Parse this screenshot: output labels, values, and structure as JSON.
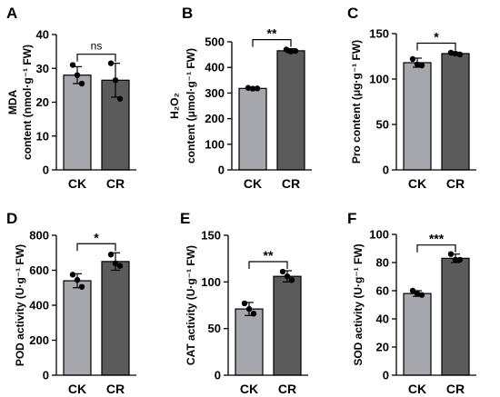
{
  "colors": {
    "CK": "#a6a6ad",
    "CR": "#5b5b5b"
  },
  "chart_data": [
    {
      "type": "bar",
      "panel": "A",
      "ylabel_lines": [
        "MDA",
        "content (nmol·g⁻¹ FW)"
      ],
      "categories": [
        "CK",
        "CR"
      ],
      "values": [
        28,
        26.5
      ],
      "errors": [
        2.5,
        5
      ],
      "points": [
        [
          31,
          28,
          25.5
        ],
        [
          31.5,
          26.5,
          21
        ]
      ],
      "ylim": [
        0,
        40
      ],
      "yticks": [
        0,
        10,
        20,
        30,
        40
      ],
      "significance": "ns"
    },
    {
      "type": "bar",
      "panel": "B",
      "ylabel_lines": [
        "H₂O₂",
        "content (μmol·g⁻¹ FW)"
      ],
      "categories": [
        "CK",
        "CR"
      ],
      "values": [
        318,
        465
      ],
      "errors": [
        4,
        8
      ],
      "points": [
        [
          320,
          317,
          318
        ],
        [
          470,
          462,
          464
        ]
      ],
      "ylim": [
        0,
        500
      ],
      "yticks": [
        0,
        100,
        200,
        300,
        400,
        500
      ],
      "significance": "**"
    },
    {
      "type": "bar",
      "panel": "C",
      "ylabel_lines": [
        "Pro content (μg·g⁻¹ FW)"
      ],
      "categories": [
        "CK",
        "CR"
      ],
      "values": [
        118,
        128
      ],
      "errors": [
        5,
        1.5
      ],
      "points": [
        [
          122,
          116,
          115
        ],
        [
          129,
          128,
          127
        ]
      ],
      "ylim": [
        0,
        150
      ],
      "yticks": [
        0,
        50,
        100,
        150
      ],
      "significance": "*"
    },
    {
      "type": "bar",
      "panel": "D",
      "ylabel_lines": [
        "POD activity (U·g⁻¹ FW)"
      ],
      "categories": [
        "CK",
        "CR"
      ],
      "values": [
        540,
        650
      ],
      "errors": [
        40,
        50
      ],
      "points": [
        [
          575,
          545,
          505
        ],
        [
          690,
          640,
          625
        ]
      ],
      "ylim": [
        0,
        800
      ],
      "yticks": [
        0,
        200,
        400,
        600,
        800
      ],
      "significance": "*"
    },
    {
      "type": "bar",
      "panel": "E",
      "ylabel_lines": [
        "CAT activity (U·g⁻¹ FW)"
      ],
      "categories": [
        "CK",
        "CR"
      ],
      "values": [
        71,
        106
      ],
      "errors": [
        7,
        6
      ],
      "points": [
        [
          77,
          71,
          66
        ],
        [
          111,
          106,
          102
        ]
      ],
      "ylim": [
        0,
        150
      ],
      "yticks": [
        0,
        50,
        100,
        150
      ],
      "significance": "**"
    },
    {
      "type": "bar",
      "panel": "F",
      "ylabel_lines": [
        "SOD activity (U·g⁻¹ FW)"
      ],
      "categories": [
        "CK",
        "CR"
      ],
      "values": [
        58,
        83
      ],
      "errors": [
        2,
        3
      ],
      "points": [
        [
          60,
          58,
          57
        ],
        [
          86,
          82,
          82
        ]
      ],
      "ylim": [
        0,
        100
      ],
      "yticks": [
        0,
        20,
        40,
        60,
        80,
        100
      ],
      "significance": "***"
    }
  ]
}
